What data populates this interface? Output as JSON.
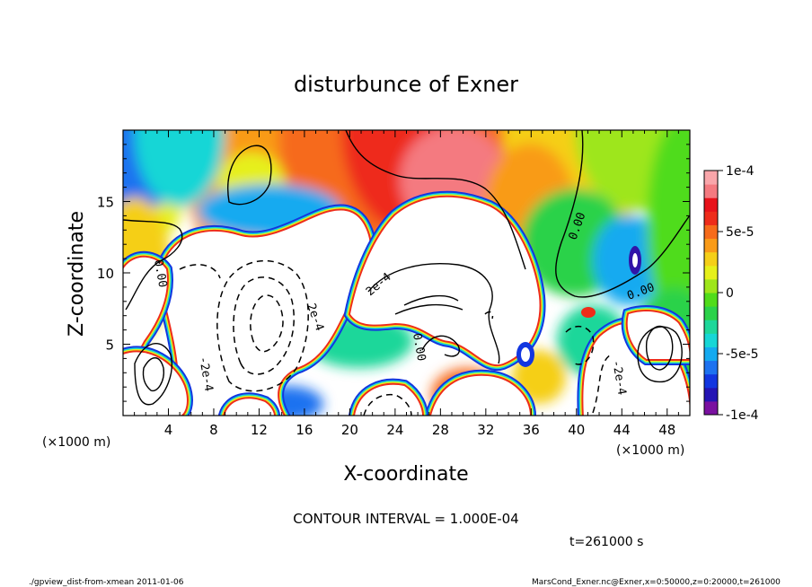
{
  "chart_data": {
    "type": "heatmap",
    "title": "disturbunce of Exner",
    "xlabel": "X-coordinate",
    "ylabel": "Z-coordinate",
    "x_unit": "(×1000 m)",
    "x_unit_right": "(×1000 m)",
    "xlim": [
      0,
      50
    ],
    "ylim": [
      0,
      20
    ],
    "x_ticks": [
      4,
      8,
      12,
      16,
      20,
      24,
      28,
      32,
      36,
      40,
      44,
      48
    ],
    "y_ticks": [
      5,
      10,
      15
    ],
    "colorbar": {
      "range": [
        -0.0001,
        0.0001
      ],
      "tick_labels": [
        "1e-4",
        "5e-5",
        "0",
        "-5e-5",
        "-1e-4"
      ],
      "tick_values": [
        0.0001,
        5e-05,
        0,
        -5e-05,
        -0.0001
      ],
      "colors": [
        "#7a10a0",
        "#2414b4",
        "#1236e0",
        "#1d72f0",
        "#14aaf0",
        "#16d6d6",
        "#1ed79a",
        "#2bd24a",
        "#50dc1a",
        "#9ee61a",
        "#e6f01a",
        "#f5cf18",
        "#f99b18",
        "#f66b1a",
        "#ee2c1a",
        "#e8121a",
        "#f47a80",
        "#f9a6aa"
      ]
    },
    "contour_labels": [
      "0.00",
      "0.00",
      "0.00",
      "0.00",
      "2e-4",
      "2e-4",
      "-2e-4",
      "-2e-4"
    ],
    "contour_interval_text": "CONTOUR INTERVAL = 1.000E-04",
    "time_text": "t=261000  s",
    "footer_left": "./gpview_dist-from-xmean  2011-01-06",
    "footer_right": "MarsCond_Exner.nc@Exner,x=0:50000,z=0:20000,t=261000"
  }
}
